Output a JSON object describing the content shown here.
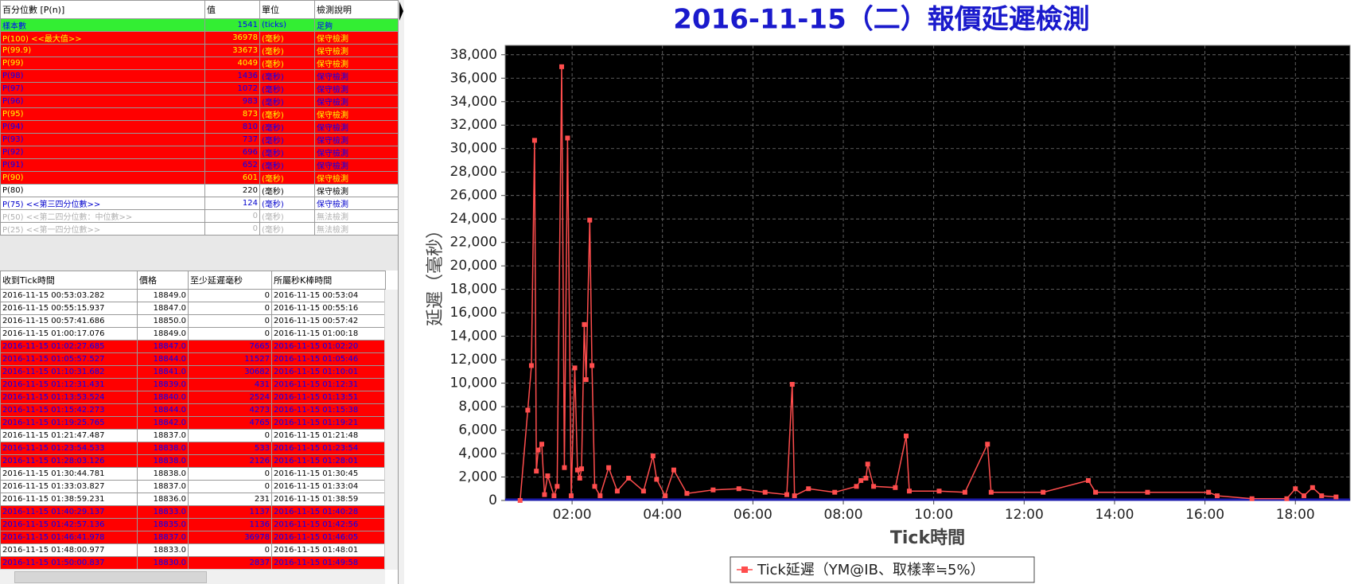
{
  "percentile_table": {
    "headers": [
      "百分位數 [P(n)]",
      "值",
      "單位",
      "檢測說明"
    ],
    "rows": [
      {
        "cells": [
          "樣本數",
          "1541",
          "(ticks)",
          "足夠"
        ],
        "bg": "#33ee33",
        "fg": "#0000ff",
        "bold": false
      },
      {
        "cells": [
          "P(100)  <<最大值>>",
          "36978",
          "(毫秒)",
          "保守檢測"
        ],
        "bg": "#ff0000",
        "fg": "#ffff00",
        "bold": true
      },
      {
        "cells": [
          "P(99.9)",
          "33673",
          "(毫秒)",
          "保守檢測"
        ],
        "bg": "#ff0000",
        "fg": "#ffff00",
        "bold": true
      },
      {
        "cells": [
          "P(99)",
          "4049",
          "(毫秒)",
          "保守檢測"
        ],
        "bg": "#ff0000",
        "fg": "#ffff00",
        "bold": true
      },
      {
        "cells": [
          "P(98)",
          "1436",
          "(毫秒)",
          "保守檢測"
        ],
        "bg": "#ff0000",
        "fg": "#0000ff",
        "bold": false
      },
      {
        "cells": [
          "P(97)",
          "1072",
          "(毫秒)",
          "保守檢測"
        ],
        "bg": "#ff0000",
        "fg": "#0000ff",
        "bold": false
      },
      {
        "cells": [
          "P(96)",
          "983",
          "(毫秒)",
          "保守檢測"
        ],
        "bg": "#ff0000",
        "fg": "#0000ff",
        "bold": false
      },
      {
        "cells": [
          "P(95)",
          "873",
          "(毫秒)",
          "保守檢測"
        ],
        "bg": "#ff0000",
        "fg": "#ffff00",
        "bold": true
      },
      {
        "cells": [
          "P(94)",
          "810",
          "(毫秒)",
          "保守檢測"
        ],
        "bg": "#ff0000",
        "fg": "#0000ff",
        "bold": false
      },
      {
        "cells": [
          "P(93)",
          "737",
          "(毫秒)",
          "保守檢測"
        ],
        "bg": "#ff0000",
        "fg": "#0000ff",
        "bold": false
      },
      {
        "cells": [
          "P(92)",
          "696",
          "(毫秒)",
          "保守檢測"
        ],
        "bg": "#ff0000",
        "fg": "#0000ff",
        "bold": false
      },
      {
        "cells": [
          "P(91)",
          "652",
          "(毫秒)",
          "保守檢測"
        ],
        "bg": "#ff0000",
        "fg": "#0000ff",
        "bold": false
      },
      {
        "cells": [
          "P(90)",
          "601",
          "(毫秒)",
          "保守檢測"
        ],
        "bg": "#ff0000",
        "fg": "#ffff00",
        "bold": true
      },
      {
        "cells": [
          "P(80)",
          "220",
          "(毫秒)",
          "保守檢測"
        ],
        "bg": "#ffffff",
        "fg": "#000000",
        "bold": false
      },
      {
        "cells": [
          "P(75)  <<第三四分位數>>",
          "124",
          "(毫秒)",
          "保守檢測"
        ],
        "bg": "#ffffff",
        "fg": "#0000cc",
        "bold": true
      },
      {
        "cells": [
          "P(50)  <<第二四分位數：中位數>>",
          "0",
          "(毫秒)",
          "無法檢測"
        ],
        "bg": "#ffffff",
        "fg": "#b0b0b0",
        "bold": false
      },
      {
        "cells": [
          "P(25)  <<第一四分位數>>",
          "0",
          "(毫秒)",
          "無法檢測"
        ],
        "bg": "#ffffff",
        "fg": "#b0b0b0",
        "bold": false
      }
    ]
  },
  "tick_table": {
    "headers": [
      "收到Tick時間",
      "價格",
      "至少延遲毫秒",
      "所屬秒K棒時間"
    ],
    "rows": [
      {
        "cells": [
          "2016-11-15 00:53:03.282",
          "18849.0",
          "0",
          "2016-11-15 00:53:04"
        ],
        "bg": "#ffffff",
        "fg": "#000000"
      },
      {
        "cells": [
          "2016-11-15 00:55:15.937",
          "18847.0",
          "0",
          "2016-11-15 00:55:16"
        ],
        "bg": "#ffffff",
        "fg": "#000000"
      },
      {
        "cells": [
          "2016-11-15 00:57:41.686",
          "18850.0",
          "0",
          "2016-11-15 00:57:42"
        ],
        "bg": "#ffffff",
        "fg": "#000000"
      },
      {
        "cells": [
          "2016-11-15 01:00:17.076",
          "18849.0",
          "0",
          "2016-11-15 01:00:18"
        ],
        "bg": "#ffffff",
        "fg": "#000000"
      },
      {
        "cells": [
          "2016-11-15 01:02:27.685",
          "18847.0",
          "7665",
          "2016-11-15 01:02:20"
        ],
        "bg": "#ff0000",
        "fg": "#0000ff"
      },
      {
        "cells": [
          "2016-11-15 01:05:57.527",
          "18844.0",
          "11527",
          "2016-11-15 01:05:46"
        ],
        "bg": "#ff0000",
        "fg": "#0000ff"
      },
      {
        "cells": [
          "2016-11-15 01:10:31.682",
          "18841.0",
          "30682",
          "2016-11-15 01:10:01"
        ],
        "bg": "#ff0000",
        "fg": "#0000ff"
      },
      {
        "cells": [
          "2016-11-15 01:12:31.431",
          "18839.0",
          "431",
          "2016-11-15 01:12:31"
        ],
        "bg": "#ff0000",
        "fg": "#0000ff"
      },
      {
        "cells": [
          "2016-11-15 01:13:53.524",
          "18840.0",
          "2524",
          "2016-11-15 01:13:51"
        ],
        "bg": "#ff0000",
        "fg": "#0000ff"
      },
      {
        "cells": [
          "2016-11-15 01:15:42.273",
          "18844.0",
          "4273",
          "2016-11-15 01:15:38"
        ],
        "bg": "#ff0000",
        "fg": "#0000ff"
      },
      {
        "cells": [
          "2016-11-15 01:19:25.765",
          "18842.0",
          "4765",
          "2016-11-15 01:19:21"
        ],
        "bg": "#ff0000",
        "fg": "#0000ff"
      },
      {
        "cells": [
          "2016-11-15 01:21:47.487",
          "18837.0",
          "0",
          "2016-11-15 01:21:48"
        ],
        "bg": "#ffffff",
        "fg": "#000000"
      },
      {
        "cells": [
          "2016-11-15 01:23:54.533",
          "18838.0",
          "533",
          "2016-11-15 01:23:54"
        ],
        "bg": "#ff0000",
        "fg": "#0000ff"
      },
      {
        "cells": [
          "2016-11-15 01:28:03.126",
          "18838.0",
          "2126",
          "2016-11-15 01:28:01"
        ],
        "bg": "#ff0000",
        "fg": "#0000ff"
      },
      {
        "cells": [
          "2016-11-15 01:30:44.781",
          "18838.0",
          "0",
          "2016-11-15 01:30:45"
        ],
        "bg": "#ffffff",
        "fg": "#000000"
      },
      {
        "cells": [
          "2016-11-15 01:33:03.827",
          "18837.0",
          "0",
          "2016-11-15 01:33:04"
        ],
        "bg": "#ffffff",
        "fg": "#000000"
      },
      {
        "cells": [
          "2016-11-15 01:38:59.231",
          "18836.0",
          "231",
          "2016-11-15 01:38:59"
        ],
        "bg": "#ffffff",
        "fg": "#000000"
      },
      {
        "cells": [
          "2016-11-15 01:40:29.137",
          "18833.0",
          "1137",
          "2016-11-15 01:40:28"
        ],
        "bg": "#ff0000",
        "fg": "#0000ff"
      },
      {
        "cells": [
          "2016-11-15 01:42:57.136",
          "18835.0",
          "1136",
          "2016-11-15 01:42:56"
        ],
        "bg": "#ff0000",
        "fg": "#0000ff"
      },
      {
        "cells": [
          "2016-11-15 01:46:41.978",
          "18837.0",
          "36978",
          "2016-11-15 01:46:05"
        ],
        "bg": "#ff0000",
        "fg": "#0000ff"
      },
      {
        "cells": [
          "2016-11-15 01:48:00.977",
          "18833.0",
          "0",
          "2016-11-15 01:48:01"
        ],
        "bg": "#ffffff",
        "fg": "#000000"
      },
      {
        "cells": [
          "2016-11-15 01:50:00.837",
          "18830.0",
          "2837",
          "2016-11-15 01:49:58"
        ],
        "bg": "#ff0000",
        "fg": "#0000ff"
      }
    ]
  },
  "chart_data": {
    "type": "line",
    "title": "2016-11-15（二）報價延遲檢測",
    "x_label": "Tick時間",
    "y_label": "延遲（毫秒）",
    "x": [
      0.85,
      1.02,
      1.1,
      1.17,
      1.21,
      1.25,
      1.33,
      1.39,
      1.46,
      1.6,
      1.67,
      1.77,
      1.83,
      1.9,
      1.98,
      2.06,
      2.12,
      2.17,
      2.21,
      2.27,
      2.31,
      2.39,
      2.44,
      2.5,
      2.62,
      2.81,
      3.0,
      3.25,
      3.58,
      3.79,
      3.87,
      4.06,
      4.25,
      4.54,
      5.12,
      5.69,
      6.27,
      6.75,
      6.87,
      6.92,
      7.23,
      7.81,
      8.29,
      8.39,
      8.5,
      8.54,
      8.67,
      9.15,
      9.39,
      9.46,
      10.12,
      10.69,
      11.19,
      11.27,
      12.42,
      13.42,
      13.58,
      14.73,
      16.08,
      16.27,
      17.04,
      17.81,
      18.0,
      18.19,
      18.38,
      18.58,
      18.9
    ],
    "series": [
      {
        "name": "Tick延遲（YM@IB、取樣率≒5%）",
        "color": "#ff4d4d",
        "values": [
          0,
          7700,
          11500,
          30700,
          2500,
          4300,
          4800,
          500,
          2100,
          400,
          1200,
          36978,
          2800,
          30900,
          400,
          11300,
          2600,
          1900,
          2700,
          15000,
          10300,
          23900,
          11500,
          1200,
          400,
          2800,
          800,
          1900,
          800,
          3800,
          1800,
          400,
          2600,
          600,
          900,
          1000,
          700,
          500,
          9900,
          400,
          1000,
          700,
          1200,
          1700,
          1900,
          3100,
          1200,
          1100,
          5500,
          800,
          800,
          700,
          4800,
          700,
          700,
          1700,
          700,
          700,
          700,
          400,
          150,
          150,
          1000,
          400,
          1100,
          400,
          300
        ]
      }
    ],
    "xlim": [
      0.52,
      19.21
    ],
    "xticks": [
      {
        "value": 2,
        "label": "02:00"
      },
      {
        "value": 4,
        "label": "04:00"
      },
      {
        "value": 6,
        "label": "06:00"
      },
      {
        "value": 8,
        "label": "08:00"
      },
      {
        "value": 10,
        "label": "10:00"
      },
      {
        "value": 12,
        "label": "12:00"
      },
      {
        "value": 14,
        "label": "14:00"
      },
      {
        "value": 16,
        "label": "16:00"
      },
      {
        "value": 18,
        "label": "18:00"
      }
    ],
    "ylim": [
      0,
      38800
    ],
    "yticks": [
      0,
      {
        "value": 2000,
        "label": "2,000"
      },
      {
        "value": 4000,
        "label": "4,000"
      },
      {
        "value": 6000,
        "label": "6,000"
      },
      {
        "value": 8000,
        "label": "8,000"
      },
      {
        "value": 10000,
        "label": "10,000"
      },
      {
        "value": 12000,
        "label": "12,000"
      },
      {
        "value": 14000,
        "label": "14,000"
      },
      {
        "value": 16000,
        "label": "16,000"
      },
      {
        "value": 18000,
        "label": "18,000"
      },
      {
        "value": 20000,
        "label": "20,000"
      },
      {
        "value": 22000,
        "label": "22,000"
      },
      {
        "value": 24000,
        "label": "24,000"
      },
      {
        "value": 26000,
        "label": "26,000"
      },
      {
        "value": 28000,
        "label": "28,000"
      },
      {
        "value": 30000,
        "label": "30,000"
      },
      {
        "value": 32000,
        "label": "32,000"
      },
      {
        "value": 34000,
        "label": "34,000"
      },
      {
        "value": 36000,
        "label": "36,000"
      },
      {
        "value": 38000,
        "label": "38,000"
      }
    ],
    "grid": true,
    "plot_background": "#000000",
    "legend": "bottom"
  }
}
